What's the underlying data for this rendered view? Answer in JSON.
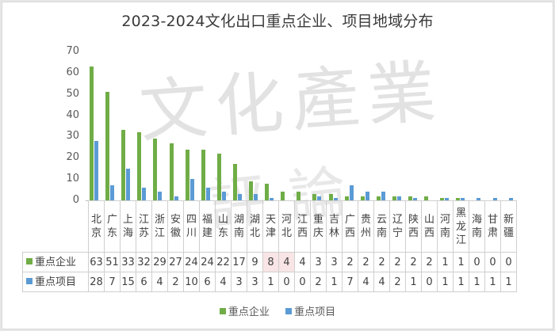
{
  "chart_data": {
    "type": "bar",
    "title": "2023-2024文化出口重点企业、项目地域分布",
    "xlabel": "",
    "ylabel": "",
    "ylim": [
      0,
      70
    ],
    "yticks": [
      0,
      10,
      20,
      30,
      40,
      50,
      60,
      70
    ],
    "grid": false,
    "legend_position": "bottom",
    "data_table": true,
    "categories": [
      "北京",
      "广东",
      "上海",
      "江苏",
      "浙江",
      "安徽",
      "四川",
      "福建",
      "山东",
      "湖南",
      "湖北",
      "天津",
      "河北",
      "江西",
      "重庆",
      "吉林",
      "广西",
      "贵州",
      "云南",
      "辽宁",
      "陕西",
      "山西",
      "河南",
      "黑龙江",
      "海南",
      "甘肃",
      "新疆"
    ],
    "series": [
      {
        "name": "重点企业",
        "color": "#70ad47",
        "values": [
          63,
          51,
          33,
          32,
          29,
          27,
          24,
          24,
          22,
          17,
          9,
          8,
          4,
          4,
          3,
          3,
          2,
          2,
          2,
          2,
          2,
          2,
          1,
          1,
          0,
          0,
          0
        ]
      },
      {
        "name": "重点项目",
        "color": "#5b9bd5",
        "values": [
          28,
          7,
          15,
          6,
          4,
          2,
          10,
          6,
          4,
          3,
          3,
          1,
          0,
          0,
          2,
          1,
          7,
          4,
          4,
          2,
          1,
          0,
          1,
          1,
          1,
          1,
          1
        ]
      }
    ],
    "watermark": "文化产业评论"
  },
  "title": "2023-2024文化出口重点企业、项目地域分布",
  "watermark_top": "文化產業",
  "watermark_bottom": "評論",
  "legend": [
    {
      "label": "重点企业",
      "color": "#70ad47"
    },
    {
      "label": "重点项目",
      "color": "#5b9bd5"
    }
  ],
  "table": {
    "row_headers": [
      "重点企业",
      "重点项目"
    ]
  }
}
